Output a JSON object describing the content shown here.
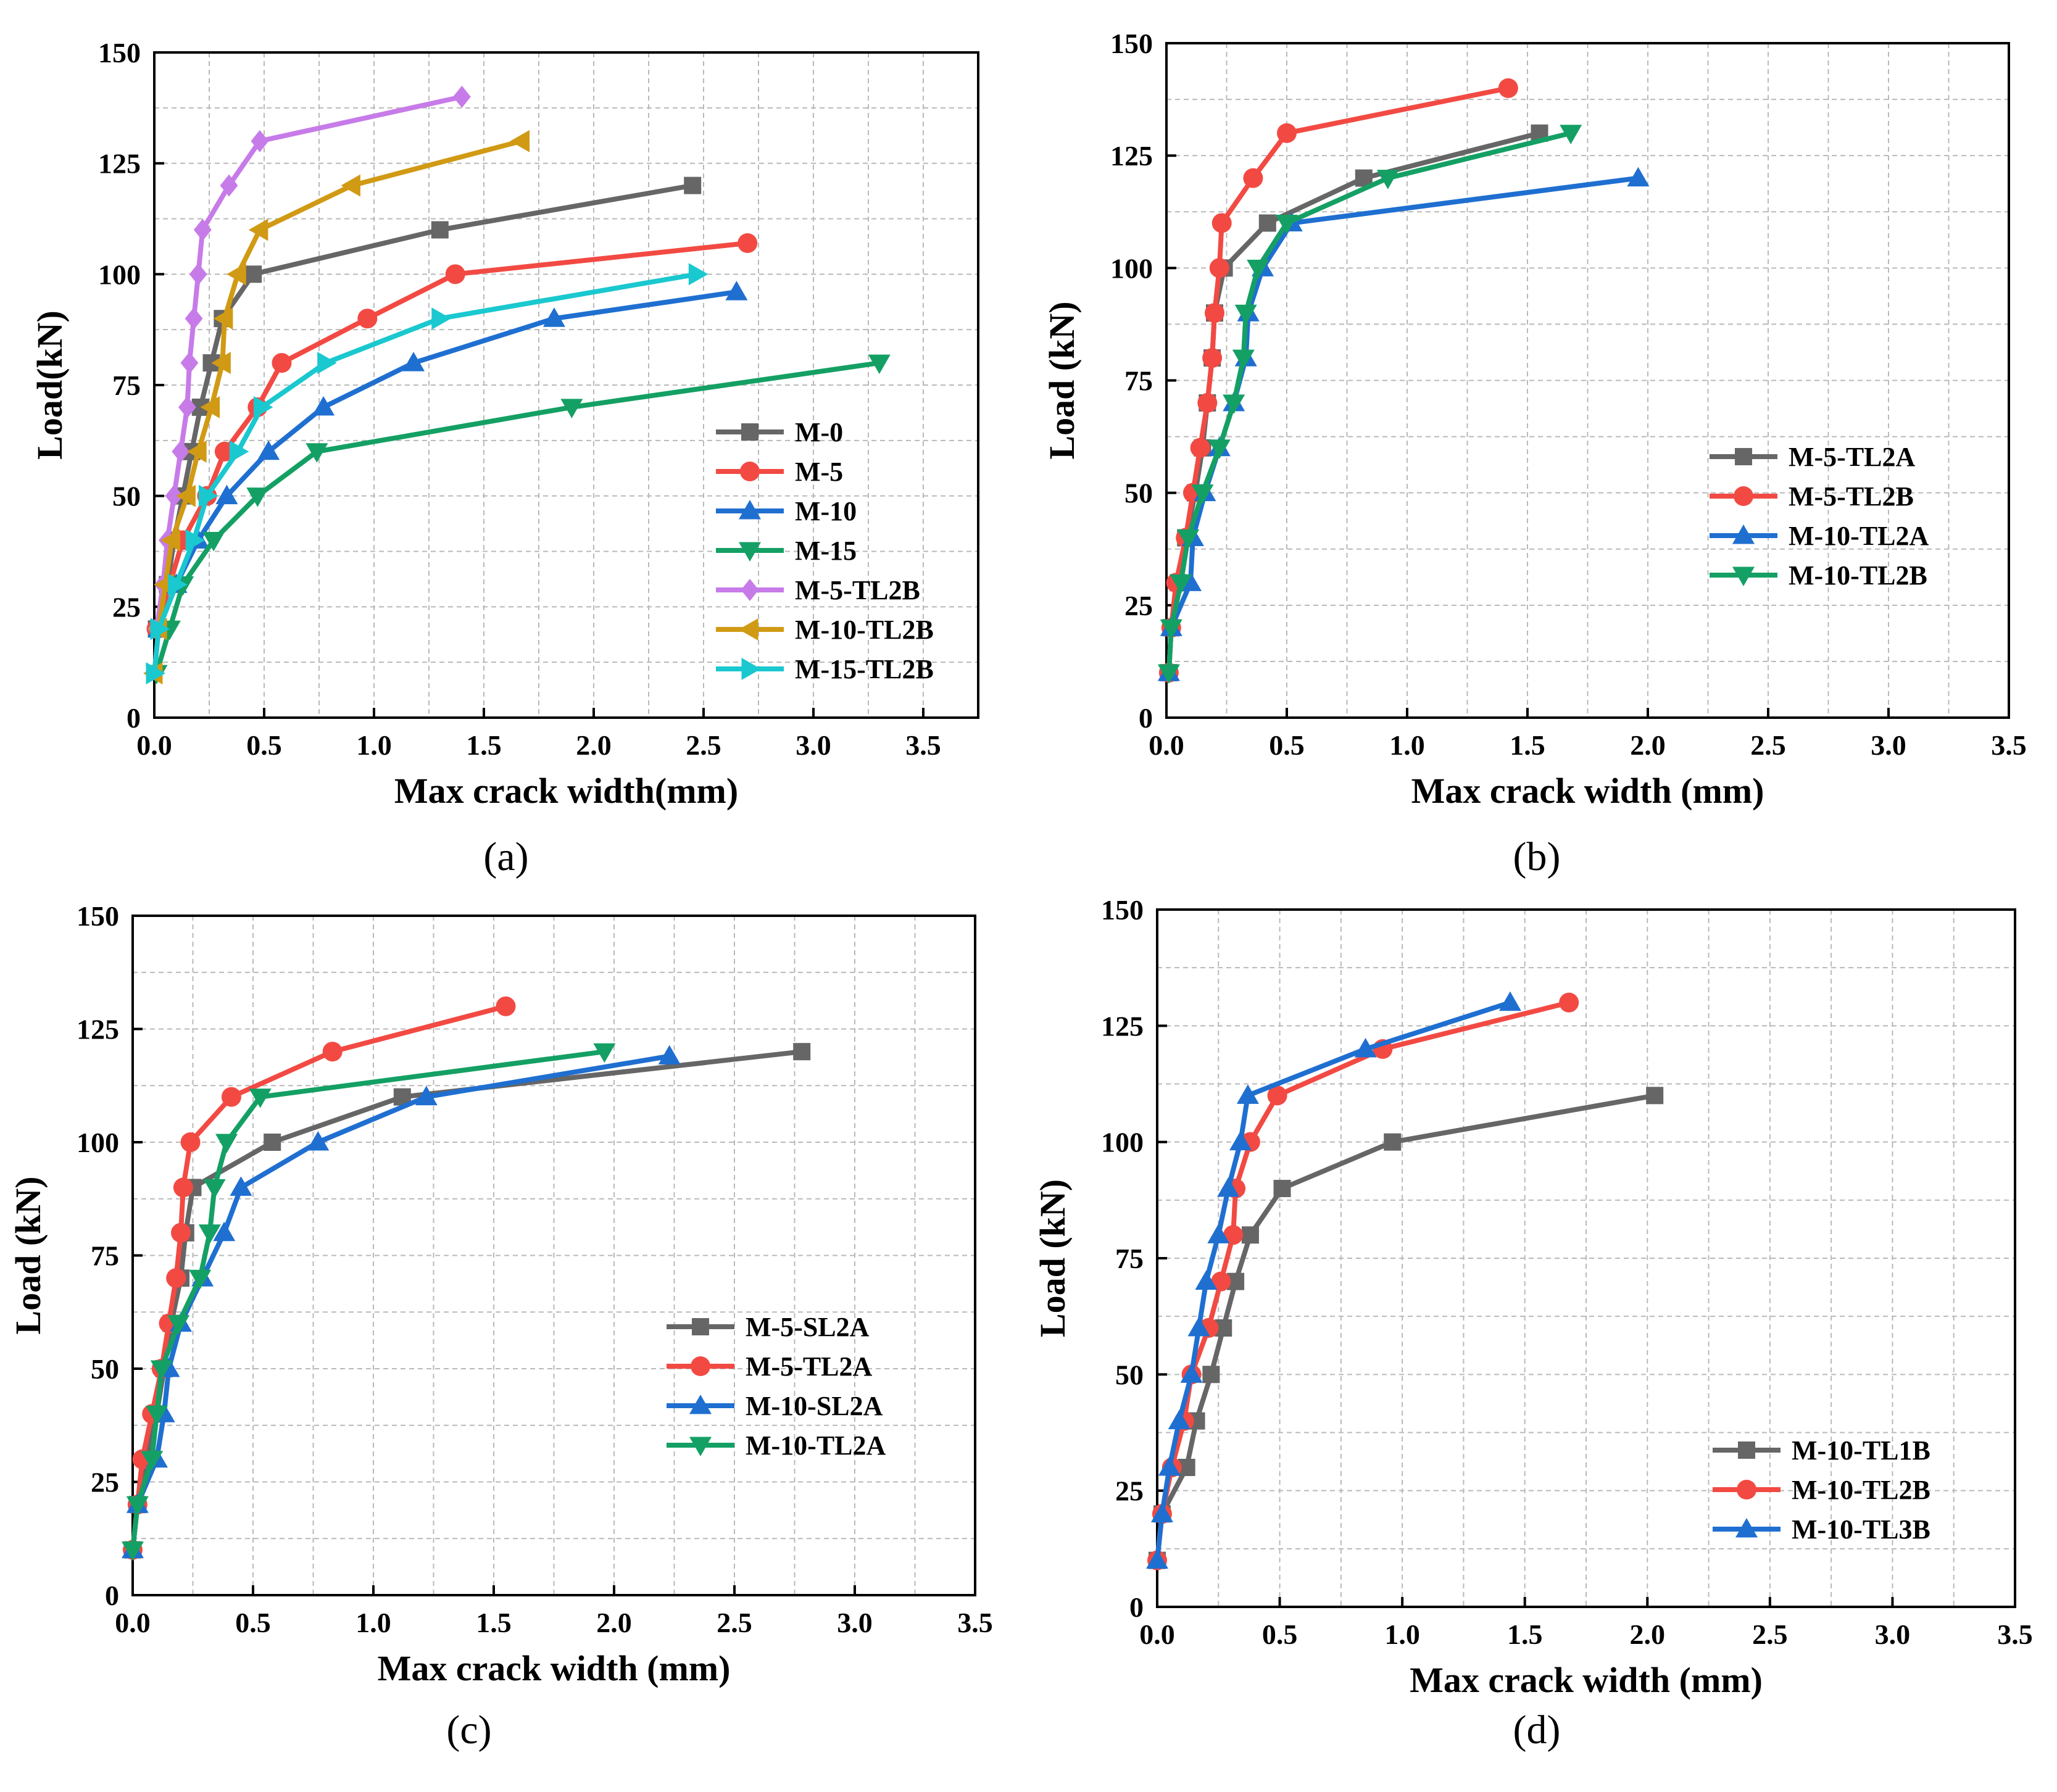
{
  "figure": {
    "panel_labels": [
      "(a)",
      "(b)",
      "(c)",
      "(d)"
    ]
  },
  "colors": {
    "gray": "#666666",
    "red": "#f24a43",
    "blue": "#1f6fd1",
    "green": "#14a064",
    "violet": "#c77be8",
    "gold": "#d19a14",
    "cyan": "#1ac8cf"
  },
  "chart_data": [
    {
      "type": "line",
      "panel": "(a)",
      "xlabel": "Max crack width(mm)",
      "ylabel": "Load(kN)",
      "xlim": [
        0,
        3.75
      ],
      "ylim": [
        0,
        150
      ],
      "xticks": [
        "0.0",
        "0.5",
        "1.0",
        "1.5",
        "2.0",
        "2.5",
        "3.0",
        "3.5"
      ],
      "yticks": [
        "0",
        "25",
        "50",
        "75",
        "100",
        "125",
        "150"
      ],
      "legend_position": "lower-right",
      "series": [
        {
          "name": "M-0",
          "color": "gray",
          "marker": "square",
          "points": [
            [
              0.01,
              20
            ],
            [
              0.06,
              30
            ],
            [
              0.09,
              40
            ],
            [
              0.13,
              50
            ],
            [
              0.17,
              60
            ],
            [
              0.21,
              70
            ],
            [
              0.26,
              80
            ],
            [
              0.31,
              90
            ],
            [
              0.45,
              100
            ],
            [
              1.3,
              110
            ],
            [
              2.45,
              120
            ]
          ]
        },
        {
          "name": "M-5",
          "color": "red",
          "marker": "circle",
          "points": [
            [
              0.01,
              20
            ],
            [
              0.07,
              30
            ],
            [
              0.13,
              40
            ],
            [
              0.24,
              50
            ],
            [
              0.32,
              60
            ],
            [
              0.47,
              70
            ],
            [
              0.58,
              80
            ],
            [
              0.97,
              90
            ],
            [
              1.37,
              100
            ],
            [
              2.7,
              107
            ]
          ]
        },
        {
          "name": "M-10",
          "color": "blue",
          "marker": "triangle-up",
          "points": [
            [
              0.02,
              20
            ],
            [
              0.1,
              30
            ],
            [
              0.2,
              40
            ],
            [
              0.33,
              50
            ],
            [
              0.52,
              60
            ],
            [
              0.77,
              70
            ],
            [
              1.18,
              80
            ],
            [
              1.82,
              90
            ],
            [
              2.65,
              96
            ]
          ]
        },
        {
          "name": "M-15",
          "color": "green",
          "marker": "triangle-down",
          "points": [
            [
              0.01,
              10
            ],
            [
              0.07,
              20
            ],
            [
              0.13,
              30
            ],
            [
              0.27,
              40
            ],
            [
              0.47,
              50
            ],
            [
              0.74,
              60
            ],
            [
              1.9,
              70
            ],
            [
              3.3,
              80
            ]
          ]
        },
        {
          "name": "M-5-TL2B",
          "color": "violet",
          "marker": "diamond",
          "points": [
            [
              0.01,
              20
            ],
            [
              0.04,
              30
            ],
            [
              0.06,
              40
            ],
            [
              0.09,
              50
            ],
            [
              0.12,
              60
            ],
            [
              0.15,
              70
            ],
            [
              0.16,
              80
            ],
            [
              0.18,
              90
            ],
            [
              0.2,
              100
            ],
            [
              0.22,
              110
            ],
            [
              0.34,
              120
            ],
            [
              0.48,
              130
            ],
            [
              1.4,
              140
            ]
          ]
        },
        {
          "name": "M-10-TL2B",
          "color": "gold",
          "marker": "triangle-left",
          "points": [
            [
              0.0,
              10
            ],
            [
              0.02,
              20
            ],
            [
              0.05,
              30
            ],
            [
              0.08,
              40
            ],
            [
              0.15,
              50
            ],
            [
              0.2,
              60
            ],
            [
              0.26,
              70
            ],
            [
              0.31,
              80
            ],
            [
              0.32,
              90
            ],
            [
              0.38,
              100
            ],
            [
              0.48,
              110
            ],
            [
              0.9,
              120
            ],
            [
              1.67,
              130
            ]
          ]
        },
        {
          "name": "M-15-TL2B",
          "color": "cyan",
          "marker": "triangle-right",
          "points": [
            [
              0.0,
              10
            ],
            [
              0.02,
              20
            ],
            [
              0.1,
              30
            ],
            [
              0.18,
              40
            ],
            [
              0.24,
              50
            ],
            [
              0.38,
              60
            ],
            [
              0.49,
              70
            ],
            [
              0.78,
              80
            ],
            [
              1.3,
              90
            ],
            [
              2.47,
              100
            ]
          ]
        }
      ]
    },
    {
      "type": "line",
      "panel": "(b)",
      "xlabel": "Max crack width (mm)",
      "ylabel": "Load (kN)",
      "xlim": [
        0,
        3.5
      ],
      "ylim": [
        0,
        150
      ],
      "xticks": [
        "0.0",
        "0.5",
        "1.0",
        "1.5",
        "2.0",
        "2.5",
        "3.0",
        "3.5"
      ],
      "yticks": [
        "0",
        "25",
        "50",
        "75",
        "100",
        "125",
        "150"
      ],
      "legend_position": "middle-right",
      "series": [
        {
          "name": "M-5-TL2A",
          "color": "gray",
          "marker": "square",
          "points": [
            [
              0.01,
              10
            ],
            [
              0.02,
              20
            ],
            [
              0.05,
              30
            ],
            [
              0.08,
              40
            ],
            [
              0.12,
              50
            ],
            [
              0.15,
              60
            ],
            [
              0.17,
              70
            ],
            [
              0.19,
              80
            ],
            [
              0.2,
              90
            ],
            [
              0.24,
              100
            ],
            [
              0.42,
              110
            ],
            [
              0.82,
              120
            ],
            [
              1.55,
              130
            ]
          ]
        },
        {
          "name": "M-5-TL2B",
          "color": "red",
          "marker": "circle",
          "points": [
            [
              0.01,
              10
            ],
            [
              0.02,
              20
            ],
            [
              0.04,
              30
            ],
            [
              0.08,
              40
            ],
            [
              0.11,
              50
            ],
            [
              0.14,
              60
            ],
            [
              0.17,
              70
            ],
            [
              0.19,
              80
            ],
            [
              0.2,
              90
            ],
            [
              0.22,
              100
            ],
            [
              0.23,
              110
            ],
            [
              0.36,
              120
            ],
            [
              0.5,
              130
            ],
            [
              1.42,
              140
            ]
          ]
        },
        {
          "name": "M-10-TL2A",
          "color": "blue",
          "marker": "triangle-up",
          "points": [
            [
              0.01,
              10
            ],
            [
              0.02,
              20
            ],
            [
              0.1,
              30
            ],
            [
              0.11,
              40
            ],
            [
              0.16,
              50
            ],
            [
              0.22,
              60
            ],
            [
              0.28,
              70
            ],
            [
              0.33,
              80
            ],
            [
              0.34,
              90
            ],
            [
              0.4,
              100
            ],
            [
              0.52,
              110
            ],
            [
              1.96,
              120
            ]
          ]
        },
        {
          "name": "M-10-TL2B",
          "color": "green",
          "marker": "triangle-down",
          "points": [
            [
              0.01,
              10
            ],
            [
              0.02,
              20
            ],
            [
              0.06,
              30
            ],
            [
              0.09,
              40
            ],
            [
              0.15,
              50
            ],
            [
              0.22,
              60
            ],
            [
              0.28,
              70
            ],
            [
              0.32,
              80
            ],
            [
              0.33,
              90
            ],
            [
              0.38,
              100
            ],
            [
              0.5,
              110
            ],
            [
              0.92,
              120
            ],
            [
              1.68,
              130
            ]
          ]
        }
      ]
    },
    {
      "type": "line",
      "panel": "(c)",
      "xlabel": "Max crack width (mm)",
      "ylabel": "Load (kN)",
      "xlim": [
        0,
        3.5
      ],
      "ylim": [
        0,
        150
      ],
      "xticks": [
        "0.0",
        "0.5",
        "1.0",
        "1.5",
        "2.0",
        "2.5",
        "3.0",
        "3.5"
      ],
      "yticks": [
        "0",
        "25",
        "50",
        "75",
        "100",
        "125",
        "150"
      ],
      "legend_position": "middle-right",
      "series": [
        {
          "name": "M-5-SL2A",
          "color": "gray",
          "marker": "square",
          "points": [
            [
              0.0,
              10
            ],
            [
              0.02,
              20
            ],
            [
              0.06,
              30
            ],
            [
              0.1,
              40
            ],
            [
              0.13,
              50
            ],
            [
              0.16,
              60
            ],
            [
              0.2,
              70
            ],
            [
              0.22,
              80
            ],
            [
              0.25,
              90
            ],
            [
              0.58,
              100
            ],
            [
              1.12,
              110
            ],
            [
              2.78,
              120
            ]
          ]
        },
        {
          "name": "M-5-TL2A",
          "color": "red",
          "marker": "circle",
          "points": [
            [
              0.0,
              10
            ],
            [
              0.02,
              20
            ],
            [
              0.04,
              30
            ],
            [
              0.08,
              40
            ],
            [
              0.12,
              50
            ],
            [
              0.15,
              60
            ],
            [
              0.18,
              70
            ],
            [
              0.2,
              80
            ],
            [
              0.21,
              90
            ],
            [
              0.24,
              100
            ],
            [
              0.41,
              110
            ],
            [
              0.83,
              120
            ],
            [
              1.55,
              130
            ]
          ]
        },
        {
          "name": "M-10-SL2A",
          "color": "blue",
          "marker": "triangle-up",
          "points": [
            [
              0.0,
              10
            ],
            [
              0.02,
              20
            ],
            [
              0.1,
              30
            ],
            [
              0.13,
              40
            ],
            [
              0.15,
              50
            ],
            [
              0.2,
              60
            ],
            [
              0.29,
              70
            ],
            [
              0.38,
              80
            ],
            [
              0.45,
              90
            ],
            [
              0.77,
              100
            ],
            [
              1.22,
              110
            ],
            [
              2.23,
              119
            ]
          ]
        },
        {
          "name": "M-10-TL2A",
          "color": "green",
          "marker": "triangle-down",
          "points": [
            [
              0.0,
              10
            ],
            [
              0.02,
              20
            ],
            [
              0.08,
              30
            ],
            [
              0.1,
              40
            ],
            [
              0.12,
              50
            ],
            [
              0.19,
              60
            ],
            [
              0.28,
              70
            ],
            [
              0.32,
              80
            ],
            [
              0.34,
              90
            ],
            [
              0.39,
              100
            ],
            [
              0.53,
              110
            ],
            [
              1.96,
              120
            ]
          ]
        }
      ]
    },
    {
      "type": "line",
      "panel": "(d)",
      "xlabel": "Max crack width (mm)",
      "ylabel": "Load (kN)",
      "xlim": [
        0,
        3.5
      ],
      "ylim": [
        0,
        150
      ],
      "xticks": [
        "0.0",
        "0.5",
        "1.0",
        "1.5",
        "2.0",
        "2.5",
        "3.0",
        "3.5"
      ],
      "yticks": [
        "0",
        "25",
        "50",
        "75",
        "100",
        "125",
        "150"
      ],
      "legend_position": "lower-right",
      "series": [
        {
          "name": "M-10-TL1B",
          "color": "gray",
          "marker": "square",
          "points": [
            [
              0.0,
              10
            ],
            [
              0.02,
              20
            ],
            [
              0.12,
              30
            ],
            [
              0.16,
              40
            ],
            [
              0.22,
              50
            ],
            [
              0.27,
              60
            ],
            [
              0.32,
              70
            ],
            [
              0.38,
              80
            ],
            [
              0.51,
              90
            ],
            [
              0.96,
              100
            ],
            [
              2.03,
              110
            ]
          ]
        },
        {
          "name": "M-10-TL2B",
          "color": "red",
          "marker": "circle",
          "points": [
            [
              0.0,
              10
            ],
            [
              0.02,
              20
            ],
            [
              0.06,
              30
            ],
            [
              0.11,
              40
            ],
            [
              0.14,
              50
            ],
            [
              0.21,
              60
            ],
            [
              0.26,
              70
            ],
            [
              0.31,
              80
            ],
            [
              0.32,
              90
            ],
            [
              0.38,
              100
            ],
            [
              0.49,
              110
            ],
            [
              0.92,
              120
            ],
            [
              1.68,
              130
            ]
          ]
        },
        {
          "name": "M-10-TL3B",
          "color": "blue",
          "marker": "triangle-up",
          "points": [
            [
              0.0,
              10
            ],
            [
              0.02,
              20
            ],
            [
              0.05,
              30
            ],
            [
              0.09,
              40
            ],
            [
              0.14,
              50
            ],
            [
              0.17,
              60
            ],
            [
              0.2,
              70
            ],
            [
              0.25,
              80
            ],
            [
              0.29,
              90
            ],
            [
              0.34,
              100
            ],
            [
              0.37,
              110
            ],
            [
              0.85,
              120
            ],
            [
              1.44,
              130
            ]
          ]
        }
      ]
    }
  ]
}
